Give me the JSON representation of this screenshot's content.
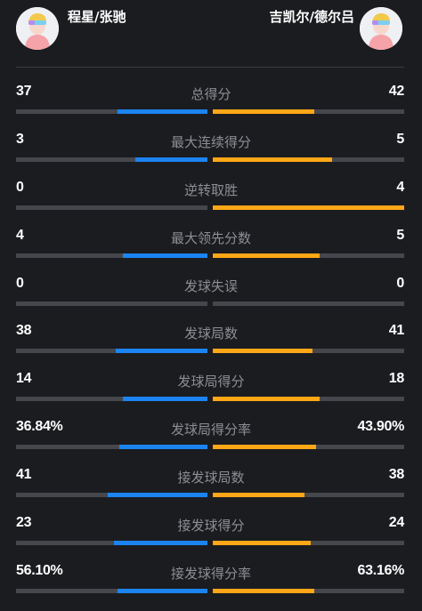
{
  "players": {
    "left": {
      "name": "程星/张驰",
      "avatar_icon": "player-avatar-icon"
    },
    "right": {
      "name": "吉凯尔/德尔吕",
      "avatar_icon": "player-avatar-icon"
    }
  },
  "colors": {
    "left_bar": "#1b84f0",
    "right_bar": "#ffa716",
    "track": "#46474c",
    "background": "#1b1c20",
    "label": "#8d8e93"
  },
  "stats": [
    {
      "label": "总得分",
      "left": "37",
      "right": "42",
      "left_fill": 0.47,
      "right_fill": 0.53
    },
    {
      "label": "最大连续得分",
      "left": "3",
      "right": "5",
      "left_fill": 0.375,
      "right_fill": 0.625
    },
    {
      "label": "逆转取胜",
      "left": "0",
      "right": "4",
      "left_fill": 0.0,
      "right_fill": 1.0
    },
    {
      "label": "最大领先分数",
      "left": "4",
      "right": "5",
      "left_fill": 0.44,
      "right_fill": 0.56
    },
    {
      "label": "发球失误",
      "left": "0",
      "right": "0",
      "left_fill": 0.0,
      "right_fill": 0.0
    },
    {
      "label": "发球局数",
      "left": "38",
      "right": "41",
      "left_fill": 0.48,
      "right_fill": 0.52
    },
    {
      "label": "发球局得分",
      "left": "14",
      "right": "18",
      "left_fill": 0.44,
      "right_fill": 0.56
    },
    {
      "label": "发球局得分率",
      "left": "36.84%",
      "right": "43.90%",
      "left_fill": 0.46,
      "right_fill": 0.54
    },
    {
      "label": "接发球局数",
      "left": "41",
      "right": "38",
      "left_fill": 0.52,
      "right_fill": 0.48
    },
    {
      "label": "接发球得分",
      "left": "23",
      "right": "24",
      "left_fill": 0.49,
      "right_fill": 0.51
    },
    {
      "label": "接发球得分率",
      "left": "56.10%",
      "right": "63.16%",
      "left_fill": 0.47,
      "right_fill": 0.53
    }
  ]
}
